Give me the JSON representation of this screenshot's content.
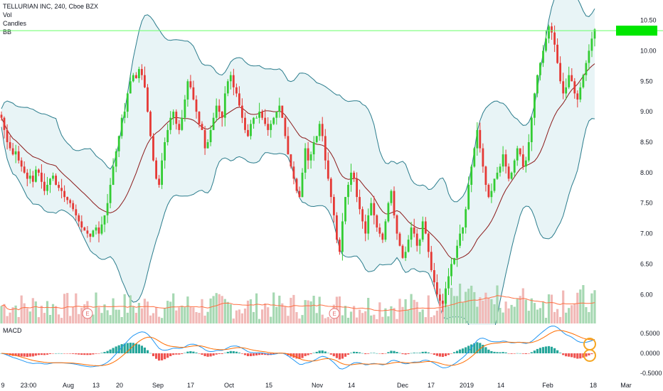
{
  "legend": {
    "title": "TELLURIAN INC, 240, Cboe BZX",
    "vol": "Vol",
    "candles": "Candles",
    "bb": "BB"
  },
  "macd_label": "MACD",
  "price_axis": [
    "10.50",
    "10.00",
    "9.50",
    "9.00",
    "8.50",
    "8.00",
    "7.50",
    "7.00",
    "6.50",
    "6.00"
  ],
  "macd_axis": [
    "0.5000",
    "0.0000",
    "-0.5000"
  ],
  "time_axis": [
    "9",
    "23:00",
    "Aug",
    "13",
    "20",
    "Sep",
    "17",
    "Oct",
    "15",
    "Nov",
    "14",
    "Dec",
    "17",
    "2019",
    "14",
    "Feb",
    "18",
    "Mar"
  ],
  "current_price_marker": "",
  "earnings_marker": "E",
  "colors": {
    "up": "#33cc33",
    "down": "#e53935",
    "bb_band": "#2a7c8c",
    "bb_basis": "#8b1a1a",
    "bb_fill": "#e8f4f6",
    "vol_up": "#a6d8b2",
    "vol_down": "#f1b8b6",
    "vol_ma": "#ff7043",
    "macd_line": "#2196f3",
    "signal_line": "#ff6d00",
    "hist_up": "#26a69a",
    "hist_down": "#ef5350",
    "pattern_bull": "#33cc33",
    "pattern_bear": "#e53935",
    "hline": "#66ff66",
    "circle": "#f5a623"
  },
  "chart_data": {
    "type": "candlestick",
    "symbol": "TELLURIAN INC",
    "interval": "240",
    "exchange": "Cboe BZX",
    "ylim": [
      5.7,
      10.6
    ],
    "horizontal_line_value": 10.33,
    "close_series": [
      8.9,
      8.7,
      8.5,
      8.4,
      8.3,
      8.35,
      8.2,
      8.1,
      8.0,
      7.9,
      7.95,
      7.85,
      8.05,
      8.0,
      7.85,
      7.7,
      7.8,
      7.9,
      7.95,
      7.8,
      7.75,
      7.7,
      7.6,
      7.55,
      7.5,
      7.4,
      7.3,
      7.2,
      7.1,
      7.05,
      7.0,
      6.95,
      7.05,
      7.1,
      7.0,
      7.15,
      7.3,
      7.5,
      7.8,
      8.1,
      8.35,
      8.6,
      8.9,
      9.0,
      9.3,
      9.5,
      9.6,
      9.55,
      9.7,
      9.6,
      9.4,
      9.0,
      8.6,
      8.2,
      7.9,
      7.8,
      8.2,
      8.5,
      8.7,
      8.9,
      9.0,
      8.8,
      8.7,
      8.9,
      9.2,
      9.5,
      9.4,
      9.2,
      9.0,
      8.8,
      8.7,
      8.4,
      8.5,
      8.7,
      8.9,
      9.1,
      9.0,
      8.9,
      9.3,
      9.5,
      9.6,
      9.4,
      9.3,
      9.1,
      8.9,
      8.7,
      8.6,
      8.8,
      8.9,
      8.9,
      9.0,
      8.9,
      8.8,
      8.7,
      8.8,
      8.9,
      9.0,
      9.1,
      8.9,
      8.6,
      8.3,
      8.1,
      7.9,
      7.7,
      7.6,
      8.0,
      8.4,
      8.2,
      8.3,
      8.5,
      8.6,
      8.8,
      8.6,
      8.2,
      7.9,
      7.6,
      7.3,
      6.9,
      6.7,
      7.2,
      7.6,
      7.8,
      8.0,
      7.9,
      7.6,
      7.4,
      7.2,
      7.0,
      7.3,
      7.5,
      7.3,
      7.1,
      7.0,
      6.9,
      7.2,
      7.5,
      7.7,
      7.3,
      7.0,
      6.8,
      6.6,
      6.7,
      6.9,
      7.1,
      7.0,
      6.8,
      6.9,
      7.2,
      7.0,
      6.7,
      6.4,
      6.2,
      6.0,
      5.9,
      5.85,
      6.1,
      6.3,
      6.5,
      6.6,
      6.8,
      7.0,
      7.1,
      7.4,
      7.8,
      8.1,
      8.4,
      8.7,
      8.4,
      8.1,
      7.8,
      7.6,
      7.7,
      7.9,
      8.0,
      8.1,
      8.3,
      8.1,
      7.9,
      8.0,
      8.2,
      8.4,
      8.3,
      8.1,
      8.2,
      8.5,
      8.9,
      9.3,
      9.6,
      9.8,
      10.0,
      10.2,
      10.4,
      10.3,
      10.1,
      9.8,
      9.5,
      9.3,
      9.4,
      9.6,
      9.5,
      9.3,
      9.2,
      9.4,
      9.6,
      9.8,
      10.0,
      10.2,
      10.35
    ]
  }
}
